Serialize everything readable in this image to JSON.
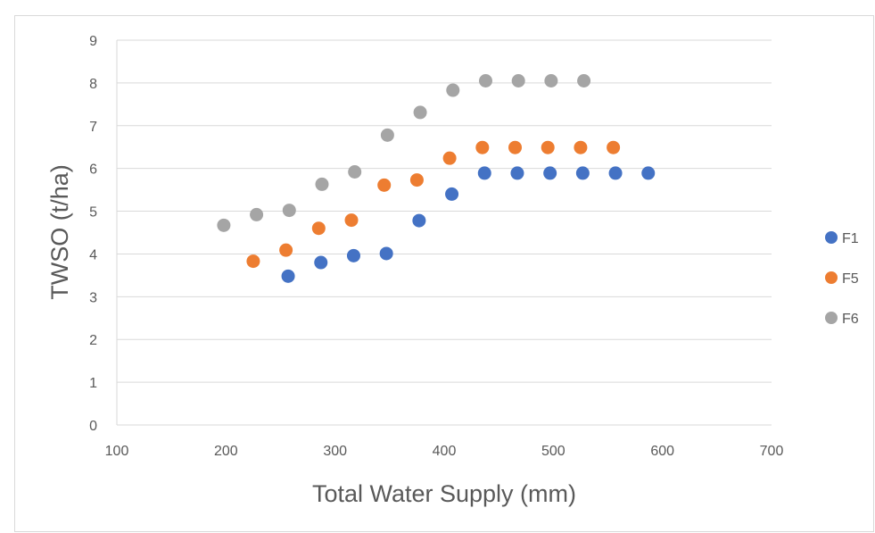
{
  "chart_data": {
    "type": "scatter",
    "title": "",
    "xlabel": "Total Water Supply (mm)",
    "ylabel": "TWSO (t/ha)",
    "xlim": [
      100,
      700
    ],
    "ylim": [
      0,
      9
    ],
    "xticks": [
      100,
      200,
      300,
      400,
      500,
      600,
      700
    ],
    "yticks": [
      0,
      1,
      2,
      3,
      4,
      5,
      6,
      7,
      8,
      9
    ],
    "grid": "horizontal",
    "legend_position": "right",
    "series": [
      {
        "name": "F1",
        "color": "#4472c4",
        "points": [
          {
            "x": 257,
            "y": 3.48
          },
          {
            "x": 287,
            "y": 3.8
          },
          {
            "x": 317,
            "y": 3.96
          },
          {
            "x": 347,
            "y": 4.01
          },
          {
            "x": 377,
            "y": 4.78
          },
          {
            "x": 407,
            "y": 5.4
          },
          {
            "x": 437,
            "y": 5.89
          },
          {
            "x": 467,
            "y": 5.89
          },
          {
            "x": 497,
            "y": 5.89
          },
          {
            "x": 527,
            "y": 5.89
          },
          {
            "x": 557,
            "y": 5.89
          },
          {
            "x": 587,
            "y": 5.89
          }
        ]
      },
      {
        "name": "F5",
        "color": "#ed7d31",
        "points": [
          {
            "x": 225,
            "y": 3.83
          },
          {
            "x": 255,
            "y": 4.09
          },
          {
            "x": 285,
            "y": 4.6
          },
          {
            "x": 315,
            "y": 4.79
          },
          {
            "x": 345,
            "y": 5.61
          },
          {
            "x": 375,
            "y": 5.73
          },
          {
            "x": 405,
            "y": 6.24
          },
          {
            "x": 435,
            "y": 6.49
          },
          {
            "x": 465,
            "y": 6.49
          },
          {
            "x": 495,
            "y": 6.49
          },
          {
            "x": 525,
            "y": 6.49
          },
          {
            "x": 555,
            "y": 6.49
          }
        ]
      },
      {
        "name": "F6",
        "color": "#a5a5a5",
        "points": [
          {
            "x": 198,
            "y": 4.67
          },
          {
            "x": 228,
            "y": 4.92
          },
          {
            "x": 258,
            "y": 5.02
          },
          {
            "x": 288,
            "y": 5.63
          },
          {
            "x": 318,
            "y": 5.92
          },
          {
            "x": 348,
            "y": 6.78
          },
          {
            "x": 378,
            "y": 7.31
          },
          {
            "x": 408,
            "y": 7.83
          },
          {
            "x": 438,
            "y": 8.05
          },
          {
            "x": 468,
            "y": 8.05
          },
          {
            "x": 498,
            "y": 8.05
          },
          {
            "x": 528,
            "y": 8.05
          }
        ]
      }
    ]
  }
}
